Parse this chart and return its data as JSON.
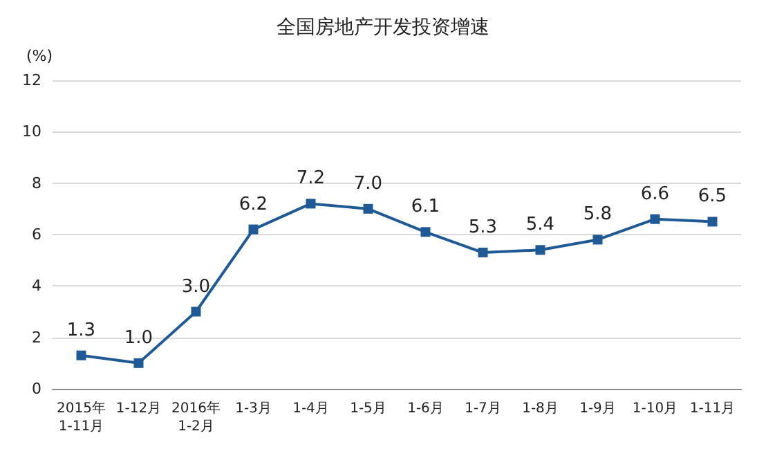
{
  "chart_data": {
    "type": "line",
    "title": "全国房地产开发投资增速",
    "ylabel": "(%)",
    "categories": [
      "2015年\n1-11月",
      "1-12月",
      "2016年\n1-2月",
      "1-3月",
      "1-4月",
      "1-5月",
      "1-6月",
      "1-7月",
      "1-8月",
      "1-9月",
      "1-10月",
      "1-11月"
    ],
    "series": [
      {
        "color": "#1f5a96",
        "values": [
          1.3,
          1.0,
          3.0,
          6.2,
          7.2,
          7.0,
          6.1,
          5.3,
          5.4,
          5.8,
          6.6,
          6.5
        ],
        "value_labels": [
          "1.3",
          "1.0",
          "3.0",
          "6.2",
          "7.2",
          "7.0",
          "6.1",
          "5.3",
          "5.4",
          "5.8",
          "6.6",
          "6.5"
        ]
      }
    ],
    "ylim": [
      0,
      12
    ],
    "yticks": [
      0,
      2,
      4,
      6,
      8,
      10,
      12
    ],
    "grid": "y",
    "marker": "square",
    "line_style": "solid"
  }
}
